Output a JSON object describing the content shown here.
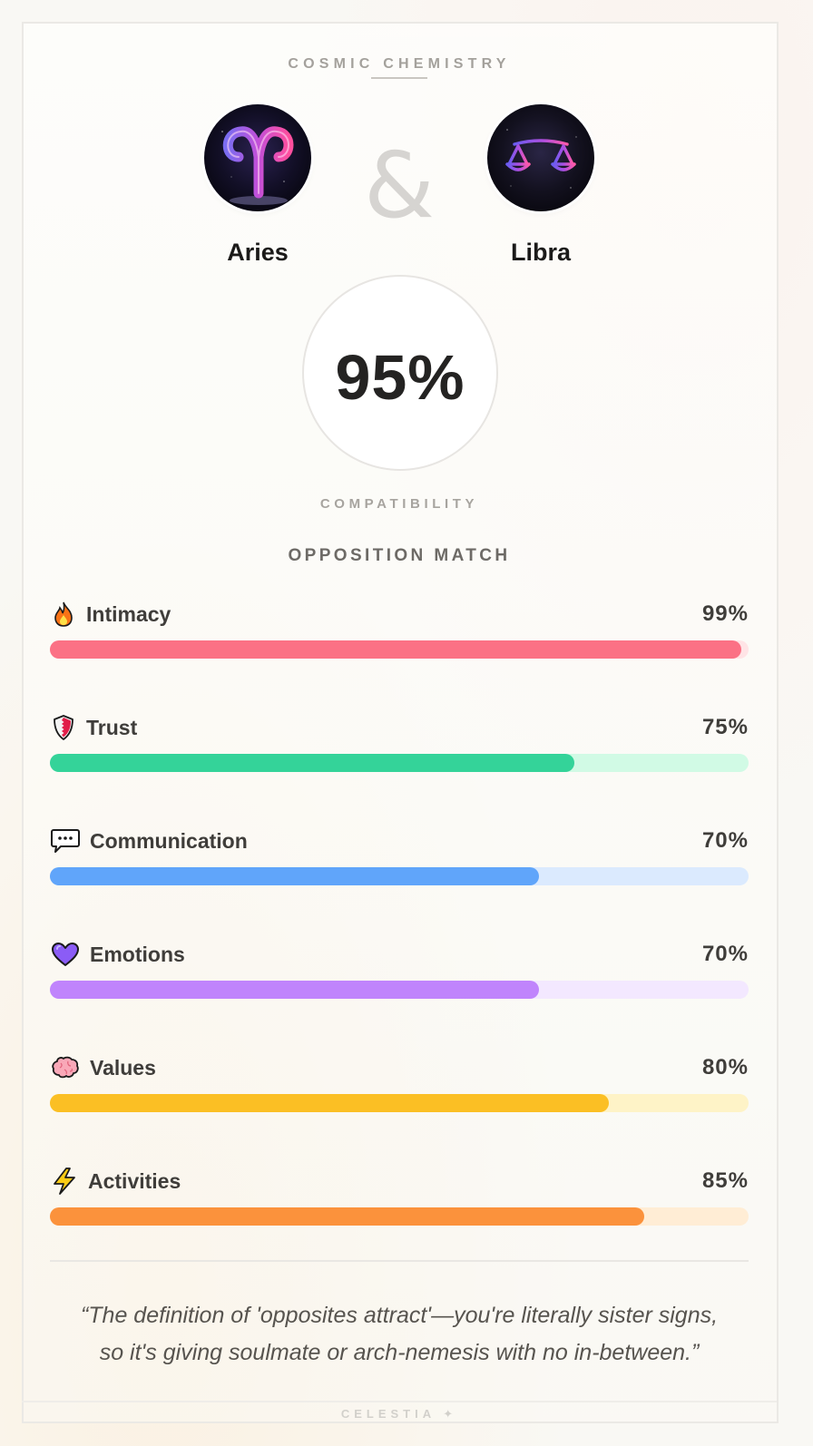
{
  "header": {
    "eyebrow": "COSMIC CHEMISTRY"
  },
  "pair": {
    "left": {
      "name": "Aries",
      "icon": "aries-glyph-icon"
    },
    "connector": "&",
    "right": {
      "name": "Libra",
      "icon": "libra-scales-icon"
    }
  },
  "score": {
    "value": "95%",
    "label": "COMPATIBILITY",
    "match_type": "OPPOSITION MATCH"
  },
  "metrics": [
    {
      "label": "Intimacy",
      "value": "99%",
      "percent": 99,
      "icon": "fire-icon",
      "fill": "#fb7185",
      "track": "#ffe4e6"
    },
    {
      "label": "Trust",
      "value": "75%",
      "percent": 75,
      "icon": "shield-icon",
      "fill": "#34d399",
      "track": "#d1fae5"
    },
    {
      "label": "Communication",
      "value": "70%",
      "percent": 70,
      "icon": "speech-bubble-icon",
      "fill": "#60a5fa",
      "track": "#dbeafe"
    },
    {
      "label": "Emotions",
      "value": "70%",
      "percent": 70,
      "icon": "purple-heart-icon",
      "fill": "#c084fc",
      "track": "#f3e8ff"
    },
    {
      "label": "Values",
      "value": "80%",
      "percent": 80,
      "icon": "brain-icon",
      "fill": "#fbbf24",
      "track": "#fef3c7"
    },
    {
      "label": "Activities",
      "value": "85%",
      "percent": 85,
      "icon": "lightning-icon",
      "fill": "#fb923c",
      "track": "#ffedd5"
    }
  ],
  "quote": "“The definition of 'opposites attract'—you're literally sister signs, so it's giving soulmate or arch-nemesis with no in-between.”",
  "footer": {
    "brand": "CELESTIA",
    "mark": "✦"
  }
}
